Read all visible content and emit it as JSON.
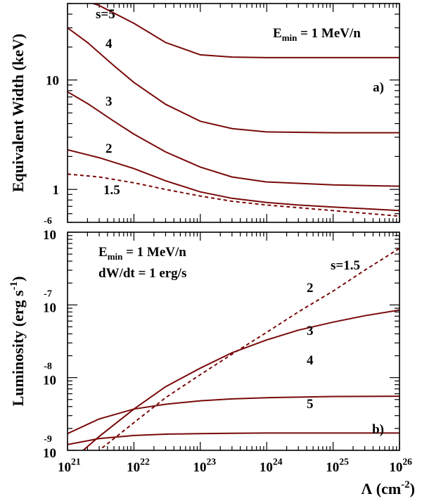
{
  "chart_data": [
    {
      "type": "line",
      "panel_label": "a)",
      "ylabel": "Equivalent Width (keV)",
      "annotation": {
        "prefix": "E",
        "sub": "min",
        "suffix": " = 1 MeV/n"
      },
      "xscale": "log",
      "yscale": "log",
      "xlim": [
        1e+21,
        1e+26
      ],
      "ylim": [
        0.5,
        50
      ],
      "ytick_labels": [
        "1",
        "10"
      ],
      "series": [
        {
          "name": "s=5",
          "style": "solid",
          "x": [
            1e+21,
            3e+21,
            1e+22,
            3e+22,
            1e+23,
            3e+23,
            1e+24,
            1e+25,
            1e+26
          ],
          "y": [
            60,
            48,
            33,
            22,
            17,
            16.2,
            16,
            16,
            16
          ]
        },
        {
          "name": "4",
          "style": "solid",
          "x": [
            1e+21,
            2e+21,
            5e+21,
            1e+22,
            3e+22,
            1e+23,
            3e+23,
            1e+24,
            1e+25,
            1e+26
          ],
          "y": [
            30,
            22,
            13.5,
            9.5,
            6,
            4.2,
            3.6,
            3.35,
            3.3,
            3.3
          ]
        },
        {
          "name": "3",
          "style": "solid",
          "x": [
            1e+21,
            2e+21,
            5e+21,
            1e+22,
            3e+22,
            1e+23,
            3e+23,
            1e+24,
            1e+25,
            1e+26
          ],
          "y": [
            7.8,
            6.1,
            4.2,
            3.2,
            2.2,
            1.6,
            1.3,
            1.17,
            1.1,
            1.07
          ]
        },
        {
          "name": "2",
          "style": "solid",
          "x": [
            1e+21,
            3e+21,
            1e+22,
            3e+22,
            1e+23,
            3e+23,
            1e+24,
            3e+24,
            1e+25,
            1e+26
          ],
          "y": [
            2.3,
            1.95,
            1.55,
            1.2,
            0.95,
            0.83,
            0.76,
            0.72,
            0.69,
            0.64
          ]
        },
        {
          "name": "1.5",
          "style": "dashed",
          "x": [
            1e+21,
            3e+21,
            1e+22,
            3e+22,
            1e+23,
            3e+23,
            1e+24,
            1e+25,
            1e+26
          ],
          "y": [
            1.38,
            1.3,
            1.15,
            1.0,
            0.87,
            0.78,
            0.72,
            0.64,
            0.57
          ]
        }
      ]
    },
    {
      "type": "line",
      "panel_label": "b)",
      "ylabel": "Luminosity (erg s",
      "ylabel_sup": "-1",
      "ylabel_end": ")",
      "xlabel": "Λ (cm",
      "xlabel_sup": "-2",
      "xlabel_end": ")",
      "annotation": {
        "prefix": "E",
        "sub": "min",
        "suffix": " = 1 MeV/n"
      },
      "annotation2": "dW/dt = 1 erg/s",
      "xscale": "log",
      "yscale": "log",
      "xlim": [
        1e+21,
        1e+26
      ],
      "ylim": [
        1e-09,
        1e-06
      ],
      "xtick_base": "10",
      "xtick_exponents": [
        "21",
        "22",
        "23",
        "24",
        "25",
        "26"
      ],
      "ytick_base": "10",
      "ytick_exponents": [
        "-9",
        "-8",
        "-7",
        "-6"
      ],
      "series": [
        {
          "name": "s=1.5",
          "style": "dashed",
          "x": [
            1e+21,
            3e+21,
            1e+22,
            3e+22,
            1e+23,
            3e+23,
            1e+24,
            3e+24,
            1e+25,
            3e+25,
            1e+26
          ],
          "y": [
            4.5e-10,
            1e-09,
            2.4e-09,
            5.3e-09,
            1.1e-08,
            2.1e-08,
            4.2e-08,
            8e-08,
            1.55e-07,
            3e-07,
            6e-07
          ]
        },
        {
          "name": "2",
          "style": "solid",
          "x": [
            1e+21,
            3e+21,
            1e+22,
            3e+22,
            1e+23,
            3e+23,
            1e+24,
            3e+24,
            1e+25,
            3e+25,
            1e+26
          ],
          "y": [
            6.5e-10,
            1.55e-09,
            3.7e-09,
            7.5e-09,
            1.35e-08,
            2.2e-08,
            3.3e-08,
            4.5e-08,
            5.8e-08,
            7.1e-08,
            8.5e-08
          ]
        },
        {
          "name": "3",
          "style": "solid",
          "x": [
            1e+21,
            3e+21,
            1e+22,
            3e+22,
            1e+23,
            3e+23,
            1e+24,
            1e+25,
            1e+26
          ],
          "y": [
            1.7e-09,
            2.7e-09,
            3.7e-09,
            4.3e-09,
            4.8e-09,
            5.1e-09,
            5.3e-09,
            5.5e-09,
            5.55e-09
          ]
        },
        {
          "name": "4",
          "style": "solid",
          "x": [
            1e+21,
            3e+21,
            1e+22,
            3e+22,
            1e+23,
            3e+23,
            1e+24,
            1e+25,
            1e+26
          ],
          "y": [
            1.2e-09,
            1.45e-09,
            1.6e-09,
            1.67e-09,
            1.7e-09,
            1.72e-09,
            1.73e-09,
            1.73e-09,
            1.73e-09
          ]
        },
        {
          "name": "5",
          "style": "solid",
          "x": [
            1e+21,
            3e+21,
            1e+22,
            3e+22,
            1e+23,
            3e+23,
            1e+24,
            1e+25,
            1e+26
          ],
          "y": [
            8.2e-10,
            8.6e-10,
            8.8e-10,
            8.9e-10,
            8.9e-10,
            8.9e-10,
            8.9e-10,
            8.9e-10,
            8.9e-10
          ]
        }
      ]
    }
  ],
  "colors": {
    "curve": "#7a0a0a",
    "axis": "#000000"
  }
}
